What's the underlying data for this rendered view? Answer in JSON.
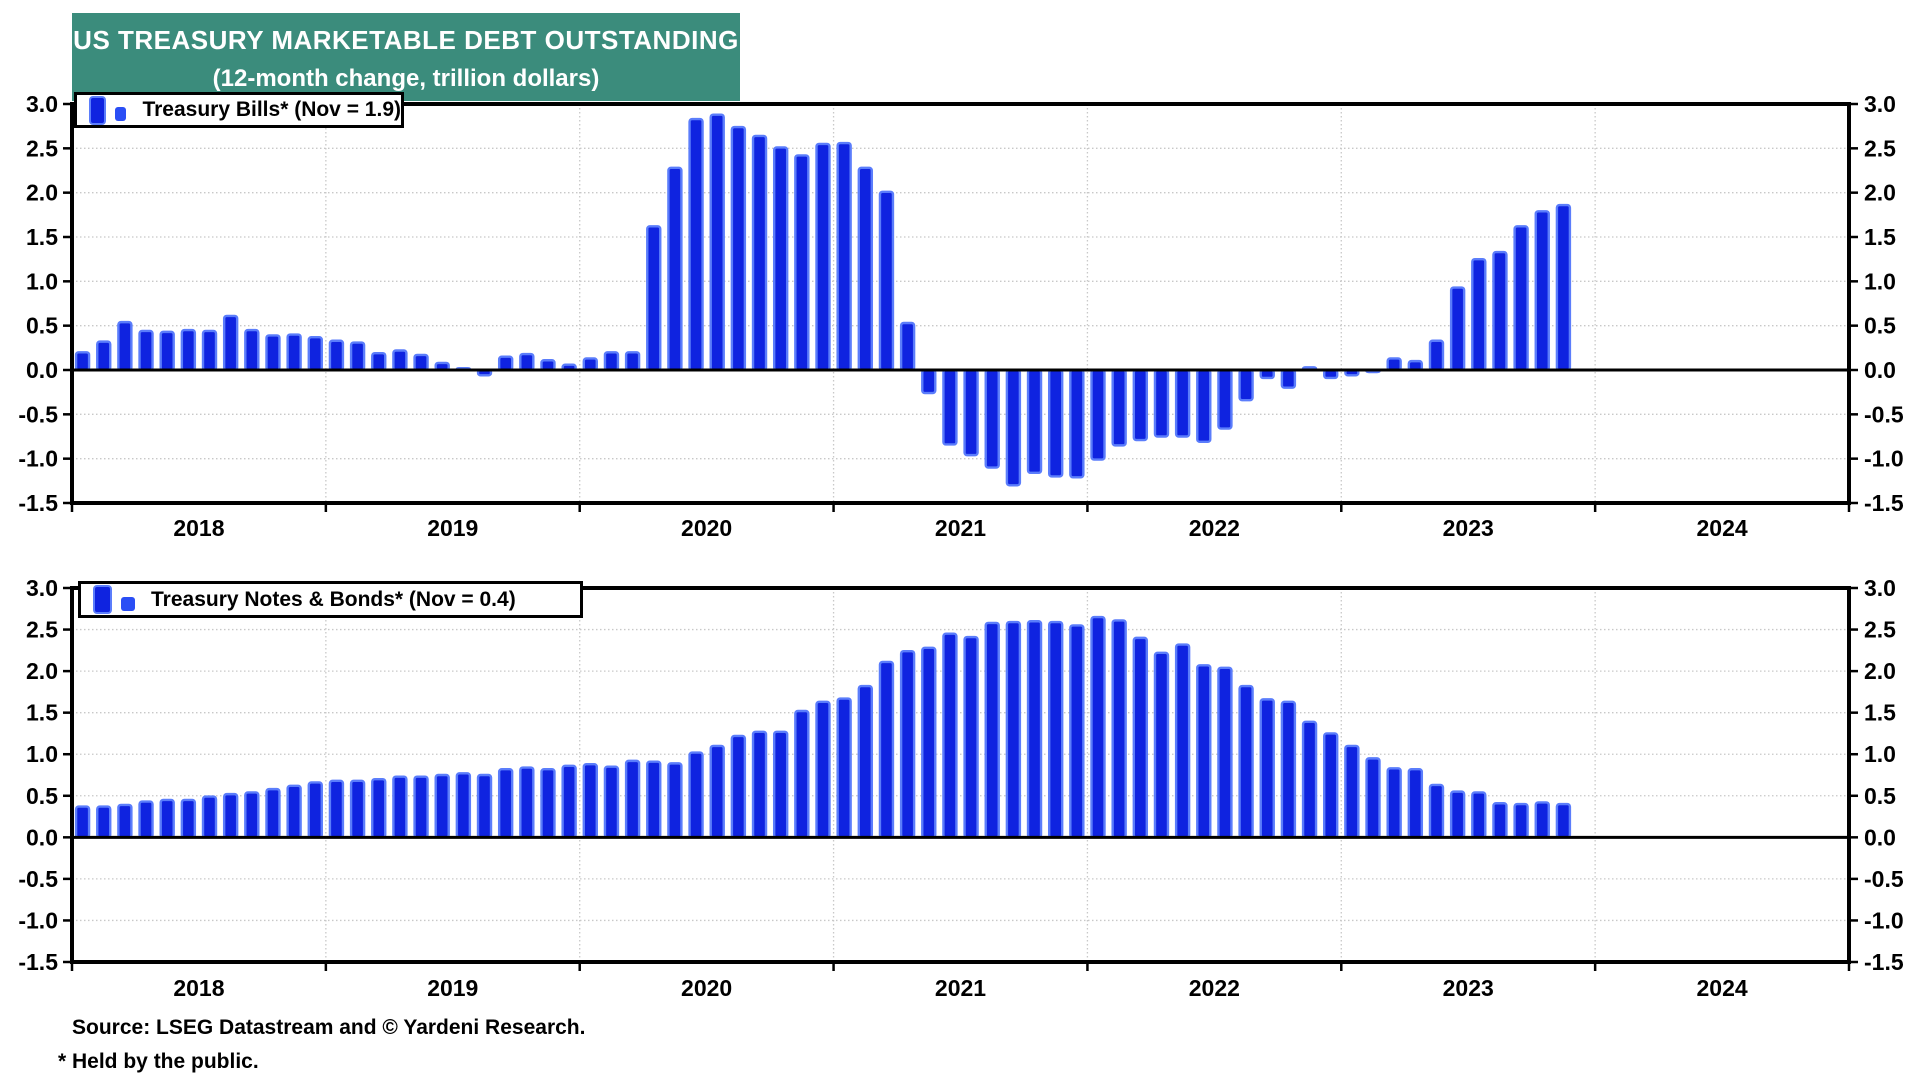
{
  "banner": {
    "title": "US TREASURY MARKETABLE DEBT OUTSTANDING",
    "subtitle": "(12-month change, trillion dollars)"
  },
  "footer": {
    "source": "Source: LSEG Datastream and © Yardeni Research.",
    "footnote": "* Held by the public."
  },
  "colors": {
    "banner_bg": "#3b8c7c",
    "banner_text": "#ffffff",
    "bar_fill": "#0f23e0",
    "bar_stroke": "#5b7dfb",
    "legend_glyph_fill": "#2a4ef5",
    "grid": "#c8c8c8",
    "axis": "#000000"
  },
  "chart_data": [
    {
      "type": "bar",
      "legend_label": "Treasury Bills* (Nov = 1.9)",
      "series_name": "Treasury Bills (12-month change, trillion dollars)",
      "start_month": "2018-01",
      "end_month": "2023-11",
      "ylim": [
        -1.5,
        3.0
      ],
      "ytick_step": 0.5,
      "yticks": [
        "3.0",
        "2.5",
        "2.0",
        "1.5",
        "1.0",
        "0.5",
        "0.0",
        "-0.5",
        "-1.0",
        "-1.5"
      ],
      "year_labels": [
        "2018",
        "2019",
        "2020",
        "2021",
        "2022",
        "2023",
        "2024"
      ],
      "grid": "dotted",
      "legend_position": "top-left",
      "values": [
        0.2,
        0.32,
        0.54,
        0.44,
        0.43,
        0.45,
        0.44,
        0.61,
        0.45,
        0.39,
        0.4,
        0.37,
        0.33,
        0.31,
        0.19,
        0.22,
        0.17,
        0.08,
        0.02,
        -0.06,
        0.15,
        0.18,
        0.11,
        0.06,
        0.13,
        0.2,
        0.2,
        1.62,
        2.28,
        2.83,
        2.88,
        2.74,
        2.64,
        2.51,
        2.42,
        2.55,
        2.56,
        2.28,
        2.01,
        0.53,
        -0.26,
        -0.84,
        -0.96,
        -1.1,
        -1.3,
        -1.16,
        -1.2,
        -1.21,
        -1.01,
        -0.85,
        -0.79,
        -0.75,
        -0.75,
        -0.81,
        -0.66,
        -0.34,
        -0.09,
        -0.2,
        0.03,
        -0.09,
        -0.06,
        -0.02,
        0.13,
        0.1,
        0.33,
        0.93,
        1.25,
        1.33,
        1.62,
        1.79,
        1.86
      ]
    },
    {
      "type": "bar",
      "legend_label": "Treasury Notes & Bonds* (Nov = 0.4)",
      "series_name": "Treasury Notes & Bonds (12-month change, trillion dollars)",
      "start_month": "2018-01",
      "end_month": "2023-11",
      "ylim": [
        -1.5,
        3.0
      ],
      "ytick_step": 0.5,
      "yticks": [
        "3.0",
        "2.5",
        "2.0",
        "1.5",
        "1.0",
        "0.5",
        "0.0",
        "-0.5",
        "-1.0",
        "-1.5"
      ],
      "year_labels": [
        "2018",
        "2019",
        "2020",
        "2021",
        "2022",
        "2023",
        "2024"
      ],
      "grid": "dotted",
      "legend_position": "top-left",
      "values": [
        0.37,
        0.37,
        0.39,
        0.43,
        0.45,
        0.45,
        0.49,
        0.52,
        0.54,
        0.58,
        0.62,
        0.66,
        0.68,
        0.68,
        0.7,
        0.73,
        0.73,
        0.75,
        0.77,
        0.75,
        0.82,
        0.84,
        0.82,
        0.86,
        0.88,
        0.85,
        0.92,
        0.91,
        0.89,
        1.02,
        1.1,
        1.22,
        1.27,
        1.27,
        1.52,
        1.63,
        1.67,
        1.82,
        2.11,
        2.24,
        2.28,
        2.45,
        2.41,
        2.58,
        2.59,
        2.6,
        2.59,
        2.55,
        2.65,
        2.61,
        2.4,
        2.22,
        2.32,
        2.07,
        2.04,
        1.82,
        1.66,
        1.63,
        1.39,
        1.25,
        1.1,
        0.95,
        0.83,
        0.82,
        0.63,
        0.55,
        0.54,
        0.41,
        0.4,
        0.42,
        0.4
      ]
    }
  ]
}
